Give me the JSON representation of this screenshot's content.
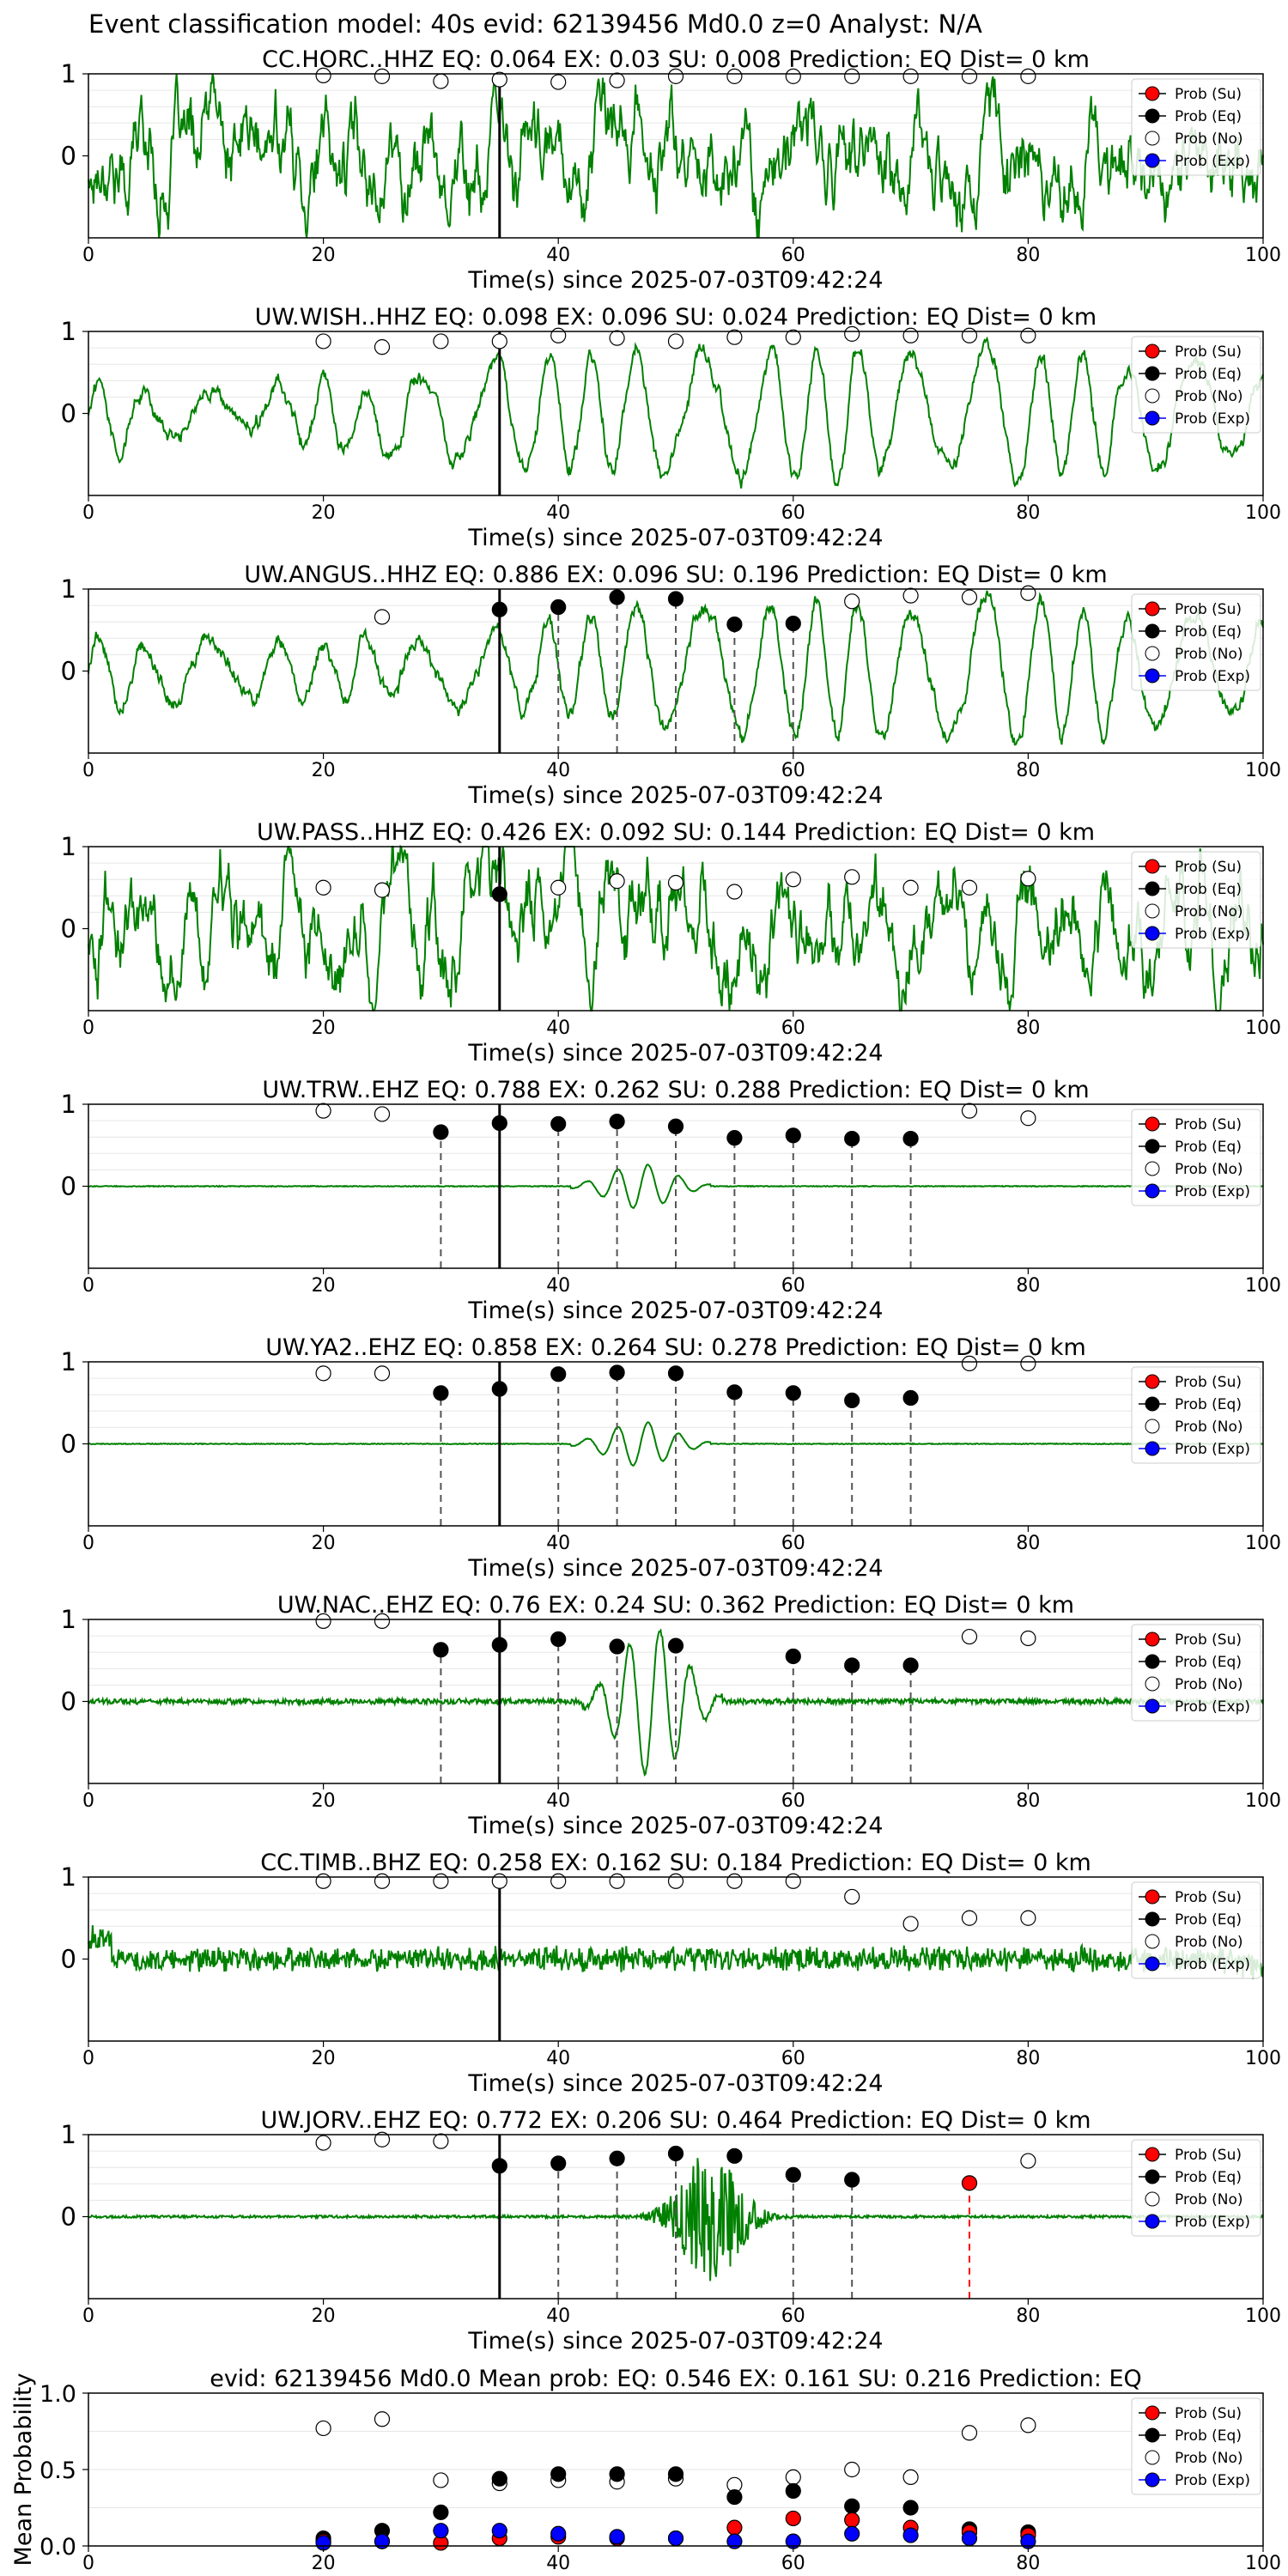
{
  "suptitle": "Event classification model: 40s evid: 62139456 Md0.0 z=0 Analyst: N/A",
  "xlabel": "Time(s) since 2025-07-03T09:42:24",
  "legend": [
    "Prob (Su)",
    "Prob (Eq)",
    "Prob (No)",
    "Prob (Exp)"
  ],
  "colors": {
    "su": "#ff0000",
    "eq": "#000000",
    "no": "#ffffff",
    "exp": "#0000ff",
    "waveform": "#008000",
    "pick": "#000000",
    "dashed": "#555555",
    "dashed_red": "#ff0000"
  },
  "chart_data": [
    {
      "type": "line",
      "station": "CC.HORC..HHZ",
      "title": "CC.HORC..HHZ   EQ: 0.064  EX: 0.03  SU: 0.008   Prediction: EQ    Dist= 0 km",
      "xlim": [
        0,
        100
      ],
      "ylim": [
        -1,
        1
      ],
      "xticks": [
        "0",
        "20",
        "40",
        "60",
        "80",
        "100"
      ],
      "yticks": [
        "1",
        "0"
      ],
      "waveform_style": "noisy",
      "pick_time": 35,
      "t": [
        20,
        25,
        30,
        35,
        40,
        45,
        50,
        55,
        60,
        65,
        70,
        75,
        80
      ],
      "prob_no": [
        0.98,
        0.97,
        0.91,
        0.93,
        0.9,
        0.92,
        0.97,
        0.97,
        0.97,
        0.97,
        0.97,
        0.97,
        0.97
      ],
      "prob_eq": [],
      "prob_su": [],
      "prob_exp": [],
      "dashed_eq": [],
      "dashed_su": []
    },
    {
      "type": "line",
      "station": "UW.WISH..HHZ",
      "title": "UW.WISH..HHZ   EQ: 0.098  EX: 0.096  SU: 0.024   Prediction: EQ    Dist= 0 km",
      "xlim": [
        0,
        100
      ],
      "ylim": [
        -1,
        1
      ],
      "xticks": [
        "0",
        "20",
        "40",
        "60",
        "80",
        "100"
      ],
      "yticks": [
        "1",
        "0"
      ],
      "waveform_style": "oscillating",
      "pick_time": 35,
      "t": [
        20,
        25,
        30,
        35,
        40,
        45,
        50,
        55,
        60,
        65,
        70,
        75,
        80
      ],
      "prob_no": [
        0.88,
        0.81,
        0.88,
        0.88,
        0.95,
        0.92,
        0.88,
        0.93,
        0.93,
        0.97,
        0.95,
        0.95,
        0.95
      ],
      "prob_eq": [],
      "prob_su": [],
      "prob_exp": [],
      "dashed_eq": [],
      "dashed_su": []
    },
    {
      "type": "line",
      "station": "UW.ANGUS..HHZ",
      "title": "UW.ANGUS..HHZ   EQ: 0.886  EX: 0.096  SU: 0.196   Prediction: EQ    Dist= 0 km",
      "xlim": [
        0,
        100
      ],
      "ylim": [
        -1,
        1
      ],
      "xticks": [
        "0",
        "20",
        "40",
        "60",
        "80",
        "100"
      ],
      "yticks": [
        "1",
        "0"
      ],
      "waveform_style": "oscillating",
      "pick_time": 35,
      "t": [
        25,
        35,
        40,
        45,
        50,
        55,
        60,
        65,
        70,
        75,
        80
      ],
      "prob_no": [
        0.66,
        null,
        null,
        null,
        null,
        null,
        null,
        0.85,
        0.92,
        0.9,
        0.95
      ],
      "prob_eq": [
        null,
        0.75,
        0.78,
        0.9,
        0.88,
        0.57,
        0.58,
        null,
        null,
        null,
        null
      ],
      "prob_su": [],
      "prob_exp": [],
      "dashed_eq": [
        40,
        45,
        50,
        55,
        60
      ],
      "dashed_su": []
    },
    {
      "type": "line",
      "station": "UW.PASS..HHZ",
      "title": "UW.PASS..HHZ   EQ: 0.426  EX: 0.092  SU: 0.144   Prediction: EQ    Dist= 0 km",
      "xlim": [
        0,
        100
      ],
      "ylim": [
        -1,
        1
      ],
      "xticks": [
        "0",
        "20",
        "40",
        "60",
        "80",
        "100"
      ],
      "yticks": [
        "1",
        "0"
      ],
      "waveform_style": "noisy",
      "pick_time": 35,
      "t": [
        20,
        25,
        35,
        40,
        45,
        50,
        55,
        60,
        65,
        70,
        75,
        80
      ],
      "prob_no": [
        0.5,
        0.47,
        null,
        0.5,
        0.58,
        0.56,
        0.45,
        0.6,
        0.63,
        0.5,
        0.5,
        0.61
      ],
      "prob_eq": [
        null,
        null,
        0.42,
        null,
        null,
        null,
        null,
        null,
        null,
        null,
        null,
        null
      ],
      "prob_su": [],
      "prob_exp": [],
      "dashed_eq": [],
      "dashed_su": []
    },
    {
      "type": "line",
      "station": "UW.TRW..EHZ",
      "title": "UW.TRW..EHZ   EQ: 0.788  EX: 0.262  SU: 0.288   Prediction: EQ    Dist= 0 km",
      "xlim": [
        0,
        100
      ],
      "ylim": [
        -1,
        1
      ],
      "xticks": [
        "0",
        "20",
        "40",
        "60",
        "80",
        "100"
      ],
      "yticks": [
        "1",
        "0"
      ],
      "waveform_style": "quiet_burst",
      "burst_center": 47,
      "pick_time": 35,
      "t": [
        20,
        25,
        30,
        35,
        40,
        45,
        50,
        55,
        60,
        65,
        70,
        75,
        80
      ],
      "prob_no": [
        0.92,
        0.88,
        null,
        null,
        null,
        null,
        null,
        null,
        null,
        null,
        null,
        0.92,
        0.83
      ],
      "prob_eq": [
        null,
        null,
        0.66,
        0.77,
        0.76,
        0.79,
        0.73,
        0.59,
        0.62,
        0.58,
        0.58,
        null,
        null
      ],
      "prob_su": [],
      "prob_exp": [],
      "dashed_eq": [
        30,
        40,
        45,
        50,
        55,
        60,
        65,
        70
      ],
      "dashed_su": []
    },
    {
      "type": "line",
      "station": "UW.YA2..EHZ",
      "title": "UW.YA2..EHZ   EQ: 0.858  EX: 0.264  SU: 0.278   Prediction: EQ    Dist= 0 km",
      "xlim": [
        0,
        100
      ],
      "ylim": [
        -1,
        1
      ],
      "xticks": [
        "0",
        "20",
        "40",
        "60",
        "80",
        "100"
      ],
      "yticks": [
        "1",
        "0"
      ],
      "waveform_style": "quiet_burst",
      "burst_center": 47,
      "pick_time": 35,
      "t": [
        20,
        25,
        30,
        35,
        40,
        45,
        50,
        55,
        60,
        65,
        70,
        75,
        80
      ],
      "prob_no": [
        0.86,
        0.86,
        null,
        null,
        null,
        null,
        null,
        null,
        null,
        null,
        null,
        0.98,
        0.98
      ],
      "prob_eq": [
        null,
        null,
        0.62,
        0.67,
        0.85,
        0.87,
        0.86,
        0.63,
        0.62,
        0.53,
        0.56,
        null,
        null
      ],
      "prob_su": [],
      "prob_exp": [],
      "dashed_eq": [
        30,
        40,
        45,
        50,
        55,
        60,
        65,
        70
      ],
      "dashed_su": []
    },
    {
      "type": "line",
      "station": "UW.NAC..EHZ",
      "title": "UW.NAC..EHZ   EQ: 0.76  EX: 0.24  SU: 0.362   Prediction: EQ    Dist= 0 km",
      "xlim": [
        0,
        100
      ],
      "ylim": [
        -1,
        1
      ],
      "xticks": [
        "0",
        "20",
        "40",
        "60",
        "80",
        "100"
      ],
      "yticks": [
        "1",
        "0"
      ],
      "waveform_style": "quiet_burst_big",
      "burst_center": 48,
      "pick_time": 35,
      "t": [
        20,
        25,
        30,
        35,
        40,
        45,
        50,
        55,
        60,
        65,
        70,
        75,
        80
      ],
      "prob_no": [
        0.98,
        0.98,
        null,
        null,
        null,
        null,
        null,
        null,
        null,
        null,
        null,
        0.79,
        0.77
      ],
      "prob_eq": [
        null,
        null,
        0.63,
        0.69,
        0.76,
        0.67,
        0.68,
        null,
        0.55,
        0.44,
        0.44,
        null,
        null
      ],
      "prob_su": [],
      "prob_exp": [],
      "dashed_eq": [
        30,
        40,
        45,
        50,
        60,
        65,
        70
      ],
      "dashed_su": []
    },
    {
      "type": "line",
      "station": "CC.TIMB..BHZ",
      "title": "CC.TIMB..BHZ   EQ: 0.258  EX: 0.162  SU: 0.184   Prediction: EQ    Dist= 0 km",
      "xlim": [
        0,
        100
      ],
      "ylim": [
        -1,
        1
      ],
      "xticks": [
        "0",
        "20",
        "40",
        "60",
        "80",
        "100"
      ],
      "yticks": [
        "1",
        "0"
      ],
      "waveform_style": "dense_noise",
      "pick_time": 35,
      "t": [
        20,
        25,
        30,
        35,
        40,
        45,
        50,
        55,
        60,
        65,
        70,
        75,
        80
      ],
      "prob_no": [
        0.95,
        0.95,
        0.95,
        0.95,
        0.95,
        0.95,
        0.95,
        0.95,
        0.95,
        0.76,
        0.43,
        0.5,
        0.5
      ],
      "prob_eq": [],
      "prob_su": [],
      "prob_exp": [],
      "dashed_eq": [],
      "dashed_su": []
    },
    {
      "type": "line",
      "station": "UW.JORV..EHZ",
      "title": "UW.JORV..EHZ   EQ: 0.772  EX: 0.206  SU: 0.464   Prediction: EQ    Dist= 0 km",
      "xlim": [
        0,
        100
      ],
      "ylim": [
        -1,
        1
      ],
      "xticks": [
        "0",
        "20",
        "40",
        "60",
        "80",
        "100"
      ],
      "yticks": [
        "1",
        "0"
      ],
      "waveform_style": "quiet_cluster",
      "burst_center": 53,
      "pick_time": 35,
      "t": [
        20,
        25,
        30,
        35,
        40,
        45,
        50,
        55,
        60,
        65,
        75,
        80
      ],
      "prob_no": [
        0.9,
        0.94,
        0.92,
        null,
        null,
        null,
        null,
        null,
        null,
        null,
        null,
        0.68
      ],
      "prob_eq": [
        null,
        null,
        null,
        0.62,
        0.65,
        0.71,
        0.77,
        0.74,
        0.51,
        0.45,
        null,
        null
      ],
      "prob_su": [
        null,
        null,
        null,
        null,
        null,
        null,
        null,
        null,
        null,
        null,
        0.41,
        null
      ],
      "prob_exp": [],
      "dashed_eq": [
        40,
        45,
        50,
        60,
        65
      ],
      "dashed_su": [
        75
      ]
    },
    {
      "type": "scatter",
      "station": "mean",
      "title": "evid: 62139456  Md0.0   Mean prob:    EQ: 0.546  EX: 0.161  SU: 0.216   Prediction: EQ",
      "ylabel": "Mean Probability",
      "xlim": [
        0,
        100
      ],
      "ylim": [
        0,
        1
      ],
      "xticks": [
        "0",
        "20",
        "40",
        "60",
        "80",
        "100"
      ],
      "yticks": [
        "0.0",
        "0.5",
        "1.0"
      ],
      "t": [
        20,
        25,
        30,
        35,
        40,
        45,
        50,
        55,
        60,
        65,
        70,
        75,
        80
      ],
      "prob_no": [
        0.77,
        0.83,
        0.43,
        0.41,
        0.43,
        0.42,
        0.44,
        0.4,
        0.45,
        0.5,
        0.45,
        0.74,
        0.79
      ],
      "prob_eq": [
        0.05,
        0.1,
        0.22,
        0.44,
        0.47,
        0.47,
        0.47,
        0.32,
        0.36,
        0.26,
        0.25,
        0.11,
        0.09
      ],
      "prob_su": [
        0.03,
        0.03,
        0.02,
        0.05,
        0.06,
        0.05,
        0.05,
        0.12,
        0.18,
        0.17,
        0.12,
        0.09,
        0.07
      ],
      "prob_exp": [
        0.02,
        0.03,
        0.1,
        0.1,
        0.08,
        0.06,
        0.05,
        0.03,
        0.03,
        0.08,
        0.07,
        0.05,
        0.03
      ],
      "dashed_eq": [],
      "dashed_su": []
    }
  ]
}
